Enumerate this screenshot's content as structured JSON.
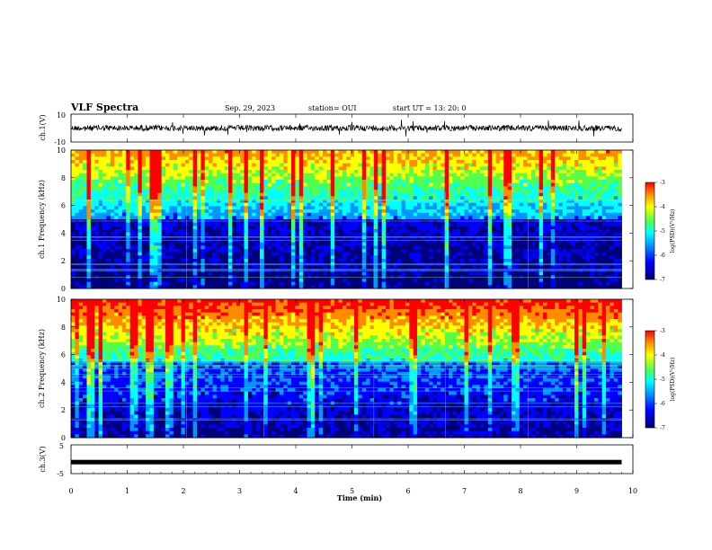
{
  "header": {
    "title": "VLF Spectra",
    "date": "Sep. 29, 2023",
    "station": "station= OUI",
    "start": "start  UT  =   13: 20: 0"
  },
  "chart_data": [
    {
      "type": "line",
      "name": "ch1-waveform",
      "ylabel": "ch.1(V)",
      "ylim": [
        -10,
        10
      ],
      "tick_labels": [
        "10",
        "-10"
      ],
      "x": [
        0,
        9.8
      ],
      "y_mean": 0
    },
    {
      "type": "heatmap",
      "name": "ch1-spectrogram",
      "ylabel": "ch.1  Frequency (kHz)",
      "ylim": [
        0,
        10
      ],
      "tick_labels": [
        "0",
        "2",
        "4",
        "6",
        "8",
        "10"
      ],
      "colorbar": {
        "label": "log(PSD)(V²/Hz)",
        "range": [
          -7,
          -3
        ],
        "ticks": [
          "-3",
          "-4",
          "-5",
          "-6",
          "-7"
        ]
      },
      "data_extent_min": 9.8
    },
    {
      "type": "heatmap",
      "name": "ch2-spectrogram",
      "ylabel": "ch.2  Frequency (kHz)",
      "ylim": [
        0,
        10
      ],
      "tick_labels": [
        "0",
        "2",
        "4",
        "6",
        "8",
        "10"
      ],
      "colorbar": {
        "label": "log(PSD)(V²/Hz)",
        "range": [
          -7,
          -3
        ],
        "ticks": [
          "-3",
          "-4",
          "-5",
          "-6",
          "-7"
        ]
      },
      "data_extent_min": 9.8
    },
    {
      "type": "line",
      "name": "ch3-waveform",
      "ylabel": "ch.3(V)",
      "ylim": [
        -5,
        5
      ],
      "tick_labels": [
        "5",
        "-5"
      ],
      "x": [
        0,
        9.8
      ],
      "y_mean": -1
    }
  ],
  "xaxis": {
    "label": "Time  (min)",
    "range": [
      0,
      10
    ],
    "ticks": [
      "0",
      "1",
      "2",
      "3",
      "4",
      "5",
      "6",
      "7",
      "8",
      "9",
      "10"
    ]
  },
  "colors": {
    "colormap": [
      "#00007a",
      "#0000ff",
      "#0096ff",
      "#00ffff",
      "#50ff50",
      "#ffff00",
      "#ff8c00",
      "#ff0000"
    ],
    "axis": "#000000"
  }
}
